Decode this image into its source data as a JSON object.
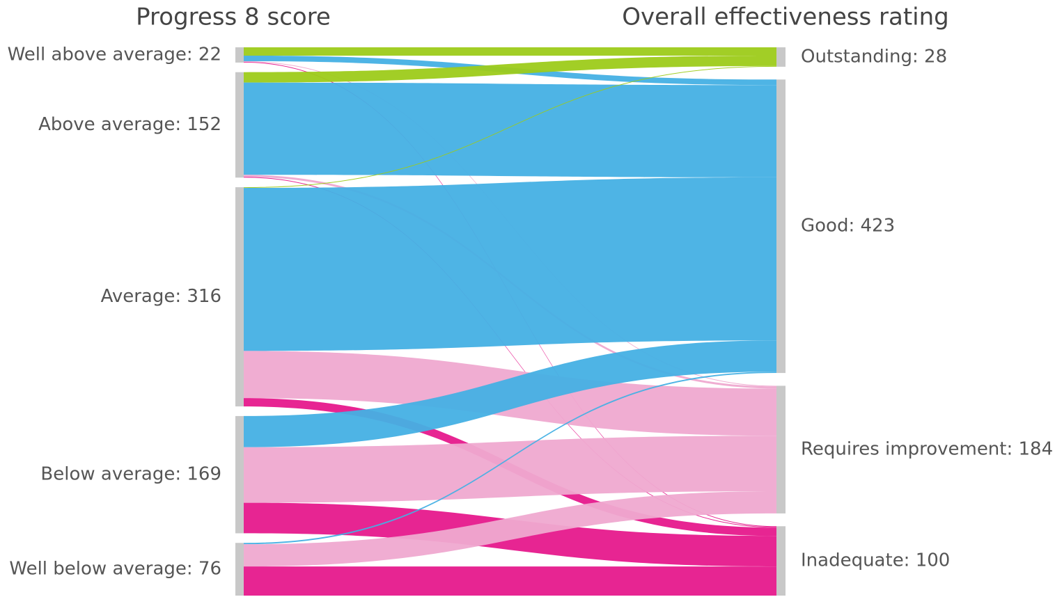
{
  "chart_data": {
    "type": "sankey",
    "left_title": "Progress 8 score",
    "right_title": "Overall effectiveness rating",
    "node_color": "#c8c8c8",
    "left_nodes": [
      {
        "label": "Well above average: 22",
        "value": 22,
        "flows": [
          12,
          8,
          1,
          1
        ]
      },
      {
        "label": "Above average: 152",
        "value": 152,
        "flows": [
          15,
          133,
          3,
          1
        ]
      },
      {
        "label": "Average: 316",
        "value": 316,
        "flows": [
          1,
          235,
          68,
          12
        ]
      },
      {
        "label": "Below average: 169",
        "value": 169,
        "flows": [
          0,
          45,
          80,
          44
        ]
      },
      {
        "label": "Well below average: 76",
        "value": 76,
        "flows": [
          0,
          2,
          32,
          42
        ]
      }
    ],
    "right_nodes": [
      {
        "label": "Outstanding: 28",
        "value": 28,
        "color": "#9dcb1a"
      },
      {
        "label": "Good: 423",
        "value": 423,
        "color": "#45b0e4"
      },
      {
        "label": "Requires improvement: 184",
        "value": 184,
        "color": "#efa9d0"
      },
      {
        "label": "Inadequate: 100",
        "value": 100,
        "color": "#e6198c"
      }
    ]
  }
}
